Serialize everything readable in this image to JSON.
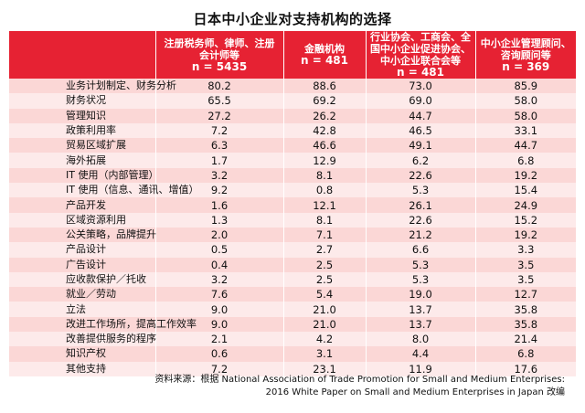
{
  "title": "日本中小企业对支持机构的选择",
  "columns": [
    {
      "label": "注册税务师、律师、注册会计师等",
      "n": "n = 5435"
    },
    {
      "label": "金融机构",
      "n": "n = 481"
    },
    {
      "label": "行业协会、工商会、全国中小企业促进协会、中小企业联合会等",
      "n": "n = 481"
    },
    {
      "label": "中小企业管理顾问、咨询顾问等",
      "n": "n = 369"
    }
  ],
  "rows": [
    {
      "label": "业务计划制定、财务分析",
      "values": [
        "80.2",
        "88.6",
        "73.0",
        "85.9"
      ]
    },
    {
      "label": "财务状况",
      "values": [
        "65.5",
        "69.2",
        "69.0",
        "58.0"
      ]
    },
    {
      "label": "管理知识",
      "values": [
        "27.2",
        "26.2",
        "44.7",
        "58.0"
      ]
    },
    {
      "label": "政策利用率",
      "values": [
        "7.2",
        "42.8",
        "46.5",
        "33.1"
      ]
    },
    {
      "label": "贸易区域扩展",
      "values": [
        "6.3",
        "46.6",
        "49.1",
        "44.7"
      ]
    },
    {
      "label": "海外拓展",
      "values": [
        "1.7",
        "12.9",
        "6.2",
        "6.8"
      ]
    },
    {
      "label": "IT 使用（内部管理）",
      "values": [
        "3.2",
        "8.1",
        "22.6",
        "19.2"
      ]
    },
    {
      "label": "IT 使用（信息、通讯、增值）",
      "values": [
        "9.2",
        "0.8",
        "5.3",
        "15.4"
      ]
    },
    {
      "label": "产品开发",
      "values": [
        "1.6",
        "12.1",
        "26.1",
        "24.9"
      ]
    },
    {
      "label": "区域资源利用",
      "values": [
        "1.3",
        "8.1",
        "22.6",
        "15.2"
      ]
    },
    {
      "label": "公关策略，品牌提升",
      "values": [
        "2.0",
        "7.1",
        "21.2",
        "19.2"
      ]
    },
    {
      "label": "产品设计",
      "values": [
        "0.5",
        "2.7",
        "6.6",
        "3.3"
      ]
    },
    {
      "label": "广告设计",
      "values": [
        "0.4",
        "2.5",
        "5.3",
        "3.5"
      ]
    },
    {
      "label": "应收款保护／托收",
      "values": [
        "3.2",
        "2.5",
        "5.3",
        "3.5"
      ]
    },
    {
      "label": "就业／劳动",
      "values": [
        "7.6",
        "5.4",
        "19.0",
        "12.7"
      ]
    },
    {
      "label": "立法",
      "values": [
        "9.0",
        "21.0",
        "13.7",
        "35.8"
      ]
    },
    {
      "label": "改进工作场所，提高工作效率",
      "values": [
        "9.0",
        "21.0",
        "13.7",
        "35.8"
      ]
    },
    {
      "label": "改善提供服务的程序",
      "values": [
        "2.1",
        "4.2",
        "8.0",
        "21.4"
      ]
    },
    {
      "label": "知识产权",
      "values": [
        "0.6",
        "3.1",
        "4.4",
        "6.8"
      ]
    },
    {
      "label": "其他支持",
      "values": [
        "7.2",
        "23.1",
        "11.9",
        "17.6"
      ]
    }
  ],
  "source_line1": "资料来源：根据 National Association of Trade Promotion for Small and Medium Enterprises:",
  "source_line2": "2016 White Paper on Small and Medium Enterprises in Japan 改编",
  "colors": {
    "header": "#e62233",
    "row_odd": "#fbd7d6",
    "row_even": "#fdeaea"
  }
}
